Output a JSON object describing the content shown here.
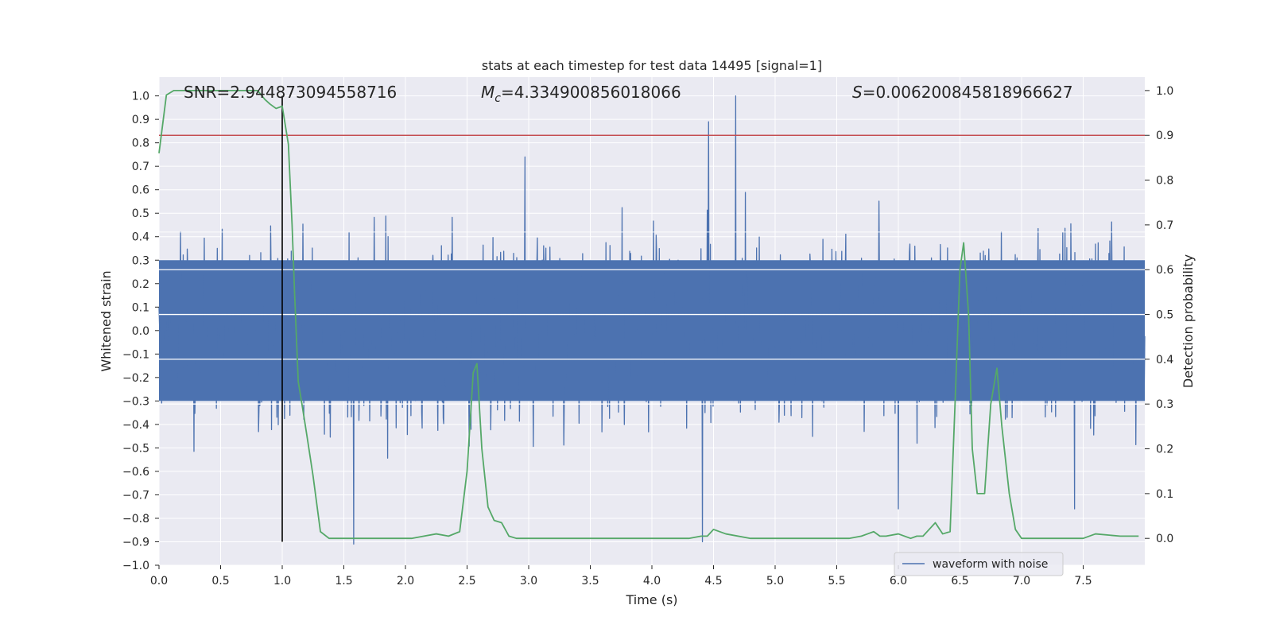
{
  "chart_data": {
    "type": "line",
    "title": "stats at each timestep for test data 14495 [signal=1]",
    "xlabel": "Time (s)",
    "ylabel": "Whitened strain",
    "ylabel_right": "Detection probability",
    "xlim": [
      0.0,
      8.0
    ],
    "ylim": [
      -1.0,
      1.08
    ],
    "ylim_right": [
      -0.06,
      1.03
    ],
    "x_ticks": [
      0.0,
      0.5,
      1.0,
      1.5,
      2.0,
      2.5,
      3.0,
      3.5,
      4.0,
      4.5,
      5.0,
      5.5,
      6.0,
      6.5,
      7.0,
      7.5
    ],
    "x_tick_labels": [
      "0.0",
      "0.5",
      "1.0",
      "1.5",
      "2.0",
      "2.5",
      "3.0",
      "3.5",
      "4.0",
      "4.5",
      "5.0",
      "5.5",
      "6.0",
      "6.5",
      "7.0",
      "7.5"
    ],
    "y_ticks": [
      -1.0,
      -0.9,
      -0.8,
      -0.7,
      -0.6,
      -0.5,
      -0.4,
      -0.3,
      -0.2,
      -0.1,
      0.0,
      0.1,
      0.2,
      0.3,
      0.4,
      0.5,
      0.6,
      0.7,
      0.8,
      0.9,
      1.0
    ],
    "y_tick_labels": [
      "−1.0",
      "−0.9",
      "−0.8",
      "−0.7",
      "−0.6",
      "−0.5",
      "−0.4",
      "−0.3",
      "−0.2",
      "−0.1",
      "0.0",
      "0.1",
      "0.2",
      "0.3",
      "0.4",
      "0.5",
      "0.6",
      "0.7",
      "0.8",
      "0.9",
      "1.0"
    ],
    "y_ticks_right": [
      0.0,
      0.1,
      0.2,
      0.3,
      0.4,
      0.5,
      0.6,
      0.7,
      0.8,
      0.9,
      1.0
    ],
    "y_tick_labels_right": [
      "0.0",
      "0.1",
      "0.2",
      "0.3",
      "0.4",
      "0.5",
      "0.6",
      "0.7",
      "0.8",
      "0.9",
      "1.0"
    ],
    "annotations": {
      "snr": "SNR=2.944873094558716",
      "mc_symbol": "M",
      "mc_sub": "c",
      "mc_value": "=4.334900856018066",
      "s_symbol": "S",
      "s_value": "=0.006200845818966627"
    },
    "legend": {
      "label": "waveform with noise",
      "position": "lower-right"
    },
    "threshold": {
      "value": 0.9,
      "axis": "right",
      "color": "#c44e52"
    },
    "event_marker": {
      "x": 1.0,
      "y_from": -0.9,
      "y_to": 1.0,
      "color": "#000000"
    },
    "series": [
      {
        "name": "waveform with noise",
        "axis": "left",
        "color": "#4c72b0",
        "t_end": 8.0,
        "noise_seed": 14495,
        "noise_sigma": 0.18,
        "peaks": [
          {
            "x": 1.58,
            "y": -0.91
          },
          {
            "x": 2.97,
            "y": 0.74
          },
          {
            "x": 4.41,
            "y": -0.9
          },
          {
            "x": 4.46,
            "y": 0.89
          },
          {
            "x": 4.68,
            "y": 1.0
          },
          {
            "x": 6.0,
            "y": -0.76
          },
          {
            "x": 7.43,
            "y": -0.76
          }
        ]
      },
      {
        "name": "detection probability",
        "axis": "right",
        "color": "#55a868",
        "x": [
          0.0,
          0.06,
          0.12,
          0.2,
          0.3,
          0.4,
          0.5,
          0.6,
          0.7,
          0.8,
          0.86,
          0.9,
          0.95,
          1.0,
          1.05,
          1.08,
          1.1,
          1.13,
          1.16,
          1.2,
          1.25,
          1.31,
          1.38,
          1.45,
          1.55,
          1.65,
          1.75,
          1.85,
          1.95,
          2.05,
          2.15,
          2.25,
          2.35,
          2.44,
          2.5,
          2.55,
          2.58,
          2.62,
          2.67,
          2.72,
          2.78,
          2.84,
          2.9,
          3.0,
          3.2,
          3.5,
          3.8,
          4.1,
          4.3,
          4.4,
          4.45,
          4.5,
          4.6,
          4.8,
          5.0,
          5.2,
          5.4,
          5.6,
          5.7,
          5.75,
          5.8,
          5.85,
          5.9,
          6.0,
          6.1,
          6.15,
          6.2,
          6.25,
          6.3,
          6.36,
          6.42,
          6.46,
          6.5,
          6.53,
          6.57,
          6.6,
          6.64,
          6.7,
          6.75,
          6.8,
          6.84,
          6.9,
          6.95,
          7.0,
          7.1,
          7.3,
          7.5,
          7.6,
          7.8,
          7.95
        ],
        "values": [
          0.86,
          0.99,
          1.0,
          1.0,
          1.0,
          1.0,
          1.0,
          1.0,
          1.0,
          1.0,
          0.98,
          0.97,
          0.96,
          0.965,
          0.88,
          0.7,
          0.55,
          0.35,
          0.3,
          0.23,
          0.14,
          0.015,
          0.0,
          0.0,
          0.0,
          0.0,
          0.0,
          0.0,
          0.0,
          0.0,
          0.005,
          0.01,
          0.005,
          0.015,
          0.15,
          0.37,
          0.39,
          0.2,
          0.07,
          0.04,
          0.035,
          0.005,
          0.0,
          0.0,
          0.0,
          0.0,
          0.0,
          0.0,
          0.0,
          0.005,
          0.005,
          0.02,
          0.01,
          0.0,
          0.0,
          0.0,
          0.0,
          0.0,
          0.005,
          0.01,
          0.015,
          0.005,
          0.005,
          0.01,
          0.0,
          0.005,
          0.005,
          0.02,
          0.035,
          0.01,
          0.015,
          0.3,
          0.6,
          0.66,
          0.5,
          0.2,
          0.1,
          0.1,
          0.3,
          0.38,
          0.25,
          0.1,
          0.02,
          0.0,
          0.0,
          0.0,
          0.0,
          0.01,
          0.005,
          0.005
        ]
      }
    ]
  }
}
